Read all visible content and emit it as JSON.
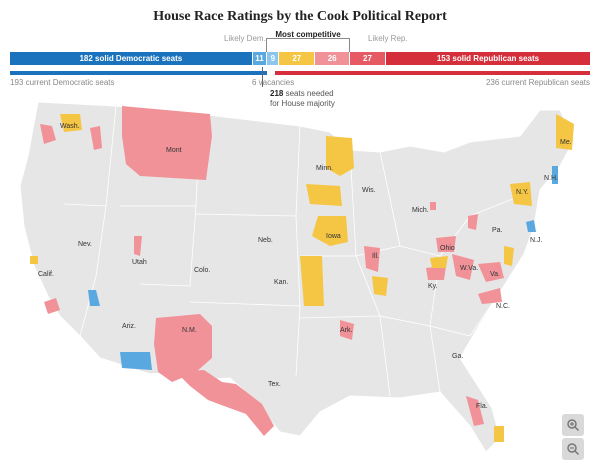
{
  "title": "House Race Ratings by the Cook Political Report",
  "colors": {
    "solid_dem": "#1b73bd",
    "likely_dem": "#5aa8e0",
    "lean_dem": "#8cc5ee",
    "tossup": "#f5c544",
    "lean_rep": "#f19299",
    "likely_rep": "#e55a63",
    "solid_rep": "#d42f3b",
    "land": "#e6e6e6",
    "border": "#ffffff"
  },
  "ratings": {
    "above_labels": {
      "likely_dem": "Likely Dem.",
      "most_competitive": "Most competitive",
      "likely_rep": "Likely Rep."
    },
    "segments": [
      {
        "key": "solid_dem",
        "value": 182,
        "label": "182 solid Democratic seats"
      },
      {
        "key": "likely_dem",
        "value": 11,
        "label": "11"
      },
      {
        "key": "lean_dem",
        "value": 9,
        "label": "9"
      },
      {
        "key": "tossup",
        "value": 27,
        "label": "27"
      },
      {
        "key": "lean_rep",
        "value": 26,
        "label": "26"
      },
      {
        "key": "likely_rep",
        "value": 27,
        "label": "27"
      },
      {
        "key": "solid_rep",
        "value": 153,
        "label": "153 solid Republican seats"
      }
    ]
  },
  "current": {
    "dem": 193,
    "vacancies": 6,
    "rep": 236,
    "dem_label": "193 current Democratic seats",
    "vacancies_label": "6 vacancies",
    "rep_label": "236 current Republican seats"
  },
  "majority": {
    "seats": "218",
    "text_after": " seats needed",
    "line2": "for House majority"
  },
  "state_labels": {
    "wash": "Wash.",
    "mont": "Mont",
    "minn": "Minn.",
    "wis": "Wis.",
    "me": "Me.",
    "ny": "N.Y.",
    "nh": "N.H.",
    "mich": "Mich.",
    "pa": "Pa.",
    "nj": "N.J.",
    "nev": "Nev.",
    "neb": "Neb.",
    "iowa": "Iowa",
    "ohio": "Ohio",
    "calif": "Calif.",
    "utah": "Utah",
    "colo": "Colo.",
    "ill": "Ill.",
    "wva": "W.Va.",
    "va": "Va.",
    "kan": "Kan.",
    "ky": "Ky.",
    "nc": "N.C.",
    "ariz": "Ariz.",
    "nm": "N.M.",
    "ark": "Ark.",
    "ga": "Ga.",
    "tex": "Tex.",
    "fla": "Fla."
  },
  "zoom": {
    "in_icon": "zoom-in-icon",
    "out_icon": "zoom-out-icon"
  }
}
